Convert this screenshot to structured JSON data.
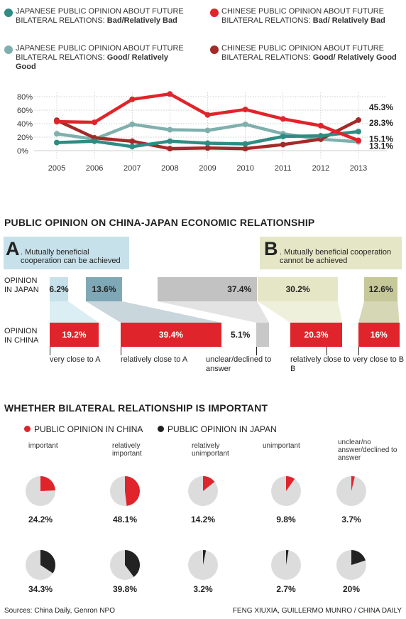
{
  "legend": [
    {
      "text": "JAPANESE PUBLIC OPINION ABOUT FUTURE BILATERAL RELATIONS:",
      "bold": "Bad/Relatively Bad",
      "color": "#2e8c83"
    },
    {
      "text": "CHINESE PUBLIC OPINION ABOUT FUTURE BILATERAL RELATIONS:",
      "bold": "Bad/ Relatively Bad",
      "color": "#e0242b"
    },
    {
      "text": "JAPANESE PUBLIC OPINION ABOUT FUTURE BILATERAL RELATIONS:",
      "bold": "Good/ Relatively Good",
      "color": "#7fb0ad"
    },
    {
      "text": "CHINESE PUBLIC OPINION ABOUT FUTURE BILATERAL RELATIONS:",
      "bold": "Good/ Relatively Good",
      "color": "#a32a28"
    }
  ],
  "chart_data": [
    {
      "type": "line",
      "x": [
        "2005",
        "2006",
        "2007",
        "2008",
        "2009",
        "2010",
        "2011",
        "2012",
        "2013"
      ],
      "ylim": [
        0,
        80
      ],
      "yticks": [
        "0%",
        "20%",
        "40%",
        "60%",
        "80%"
      ],
      "series": [
        {
          "name": "JAPANESE PUBLIC OPINION ABOUT FUTURE BILATERAL RELATIONS: Bad/Relatively Bad",
          "color": "#2e8c83",
          "values": [
            12,
            14,
            6,
            14,
            11,
            10,
            21,
            22,
            28.3
          ],
          "end_label": "28.3%"
        },
        {
          "name": "CHINESE PUBLIC OPINION ABOUT FUTURE BILATERAL RELATIONS: Bad/ Relatively Bad",
          "color": "#e0242b",
          "values": [
            43,
            42,
            76,
            84,
            53,
            61,
            47,
            37,
            15.1
          ],
          "end_label": "15.1%"
        },
        {
          "name": "JAPANESE PUBLIC OPINION ABOUT FUTURE BILATERAL RELATIONS: Good/ Relatively Good",
          "color": "#7fb0ad",
          "values": [
            25,
            17,
            39,
            31,
            30,
            39,
            25,
            17,
            13.1
          ],
          "end_label": "13.1%"
        },
        {
          "name": "CHINESE PUBLIC OPINION ABOUT FUTURE BILATERAL RELATIONS: Good/ Relatively Good",
          "color": "#a32a28",
          "values": [
            45,
            19,
            14,
            3,
            4,
            3,
            9,
            17,
            45.3
          ],
          "end_label": "45.3%"
        }
      ]
    },
    {
      "type": "bar",
      "title": "PUBLIC OPINION ON CHINA-JAPAN ECONOMIC RELATIONSHIP",
      "categories": [
        "very close to A",
        "relatively close to A",
        "unclear/declined to answer",
        "relatively close to B",
        "very close to B"
      ],
      "series": [
        {
          "name": "OPINION IN JAPAN",
          "values": [
            6.2,
            13.6,
            37.4,
            30.2,
            12.6
          ],
          "labels": [
            "6.2%",
            "13.6%",
            "37.4%",
            "30.2%",
            "12.6%"
          ]
        },
        {
          "name": "OPINION IN CHINA",
          "values": [
            19.2,
            39.4,
            5.1,
            20.3,
            16
          ],
          "labels": [
            "19.2%",
            "39.4%",
            "5.1%",
            "20.3%",
            "16%"
          ]
        }
      ],
      "option_a": {
        "letter": "A",
        "text": ". Mutually beneficial cooperation can be achieved"
      },
      "option_b": {
        "letter": "B",
        "text": ". Mutually beneficial cooperation cannot be achieved"
      }
    },
    {
      "type": "pie",
      "title": "WHETHER BILATERAL RELATIONSHIP IS IMPORTANT",
      "legend": [
        {
          "name": "PUBLIC OPINION IN CHINA",
          "color": "#e0242b"
        },
        {
          "name": "PUBLIC OPINION IN JAPAN",
          "color": "#222222"
        }
      ],
      "categories": [
        "important",
        "relatively important",
        "relatively unimportant",
        "unimportant",
        "unclear/no answer/declined to answer"
      ],
      "china": [
        24.2,
        48.1,
        14.2,
        9.8,
        3.7
      ],
      "china_labels": [
        "24.2%",
        "48.1%",
        "14.2%",
        "9.8%",
        "3.7%"
      ],
      "japan": [
        34.3,
        39.8,
        3.2,
        2.7,
        20
      ],
      "japan_labels": [
        "34.3%",
        "39.8%",
        "3.2%",
        "2.7%",
        "20%"
      ]
    }
  ],
  "ui": {
    "bars_title": "PUBLIC OPINION ON CHINA-JAPAN ECONOMIC RELATIONSHIP",
    "pies_title": "WHETHER BILATERAL RELATIONSHIP IS IMPORTANT",
    "row_japan": "OPINION IN JAPAN",
    "row_china": "OPINION IN CHINA",
    "sources": "Sources: China Daily, Genron NPO",
    "credit": "FENG XIUXIA, GUILLERMO MUNRO / CHINA DAILY"
  },
  "colors": {
    "red": "#e0242b",
    "teal": "#2e8c83",
    "lightteal": "#7fb0ad",
    "darkred": "#a32a28",
    "grey": "#c8c8c8",
    "pie_bg": "#dcdcdc"
  }
}
